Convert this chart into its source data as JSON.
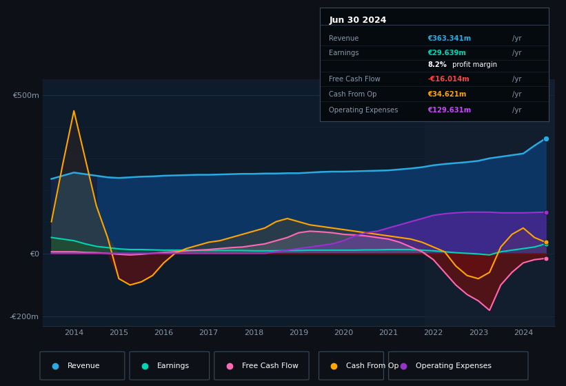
{
  "background_color": "#0d1117",
  "plot_bg_color": "#0d1b2a",
  "title_box": {
    "date": "Jun 30 2024",
    "rows": [
      {
        "label": "Revenue",
        "value": "€363.341m",
        "color": "#29abe2"
      },
      {
        "label": "Earnings",
        "value": "€29.639m",
        "color": "#00d4b4"
      },
      {
        "label": "",
        "value2_bold": "8.2%",
        "value2_rest": " profit margin",
        "color": "#ffffff"
      },
      {
        "label": "Free Cash Flow",
        "value": "-€16.014m",
        "color": "#ff4444"
      },
      {
        "label": "Cash From Op",
        "value": "€34.621m",
        "color": "#ffa500"
      },
      {
        "label": "Operating Expenses",
        "value": "€129.631m",
        "color": "#cc44ff"
      }
    ]
  },
  "years": [
    2013.5,
    2013.75,
    2014.0,
    2014.25,
    2014.5,
    2014.75,
    2015.0,
    2015.25,
    2015.5,
    2015.75,
    2016.0,
    2016.25,
    2016.5,
    2016.75,
    2017.0,
    2017.25,
    2017.5,
    2017.75,
    2018.0,
    2018.25,
    2018.5,
    2018.75,
    2019.0,
    2019.25,
    2019.5,
    2019.75,
    2020.0,
    2020.25,
    2020.5,
    2020.75,
    2021.0,
    2021.25,
    2021.5,
    2021.75,
    2022.0,
    2022.25,
    2022.5,
    2022.75,
    2023.0,
    2023.25,
    2023.5,
    2023.75,
    2024.0,
    2024.25,
    2024.5
  ],
  "revenue": [
    235,
    245,
    255,
    250,
    245,
    240,
    238,
    240,
    242,
    243,
    245,
    246,
    247,
    248,
    248,
    249,
    250,
    251,
    251,
    252,
    252,
    253,
    253,
    255,
    257,
    258,
    258,
    259,
    260,
    261,
    262,
    265,
    268,
    272,
    278,
    282,
    285,
    288,
    292,
    300,
    305,
    310,
    315,
    340,
    363
  ],
  "earnings": [
    50,
    45,
    40,
    30,
    22,
    18,
    14,
    12,
    12,
    11,
    10,
    10,
    10,
    9,
    9,
    9,
    9,
    9,
    8,
    8,
    8,
    9,
    9,
    10,
    10,
    10,
    10,
    10,
    11,
    11,
    12,
    12,
    12,
    10,
    8,
    5,
    2,
    0,
    -2,
    -5,
    5,
    10,
    15,
    20,
    30
  ],
  "free_cash_flow": [
    5,
    5,
    5,
    3,
    2,
    0,
    -3,
    -5,
    -3,
    0,
    3,
    5,
    8,
    10,
    12,
    15,
    18,
    20,
    25,
    30,
    40,
    50,
    65,
    70,
    68,
    65,
    60,
    58,
    55,
    50,
    45,
    35,
    20,
    5,
    -20,
    -60,
    -100,
    -130,
    -150,
    -180,
    -100,
    -60,
    -30,
    -20,
    -16
  ],
  "cash_from_op": [
    100,
    280,
    450,
    300,
    150,
    50,
    -80,
    -100,
    -90,
    -70,
    -30,
    0,
    15,
    25,
    35,
    40,
    50,
    60,
    70,
    80,
    100,
    110,
    100,
    90,
    85,
    80,
    75,
    70,
    65,
    60,
    55,
    50,
    45,
    35,
    20,
    5,
    -40,
    -70,
    -80,
    -60,
    20,
    60,
    80,
    50,
    35
  ],
  "operating_expenses": [
    0,
    0,
    0,
    0,
    0,
    0,
    0,
    0,
    0,
    0,
    0,
    0,
    0,
    0,
    0,
    0,
    0,
    0,
    0,
    0,
    5,
    10,
    15,
    20,
    25,
    30,
    40,
    55,
    65,
    70,
    80,
    90,
    100,
    110,
    120,
    125,
    128,
    130,
    130,
    130,
    128,
    128,
    128,
    129,
    130
  ],
  "ylim": [
    -230,
    550
  ],
  "yticks": [
    -200,
    0,
    500
  ],
  "ytick_labels": [
    "-€200m",
    "€0",
    "€500m"
  ],
  "xlim": [
    2013.3,
    2024.7
  ],
  "xticks": [
    2014,
    2015,
    2016,
    2017,
    2018,
    2019,
    2020,
    2021,
    2022,
    2023,
    2024
  ],
  "grid_color": "#1e3045",
  "colors": {
    "revenue": "#29abe2",
    "revenue_fill": "#0d3a6e",
    "earnings": "#00d4b4",
    "earnings_fill": "#005040",
    "free_cash_flow": "#ff69b4",
    "cash_from_op": "#ffa500",
    "operating_expenses": "#9932cc"
  },
  "legend_items": [
    "Revenue",
    "Earnings",
    "Free Cash Flow",
    "Cash From Op",
    "Operating Expenses"
  ],
  "legend_colors": [
    "#29abe2",
    "#00d4b4",
    "#ff69b4",
    "#ffa500",
    "#9932cc"
  ]
}
